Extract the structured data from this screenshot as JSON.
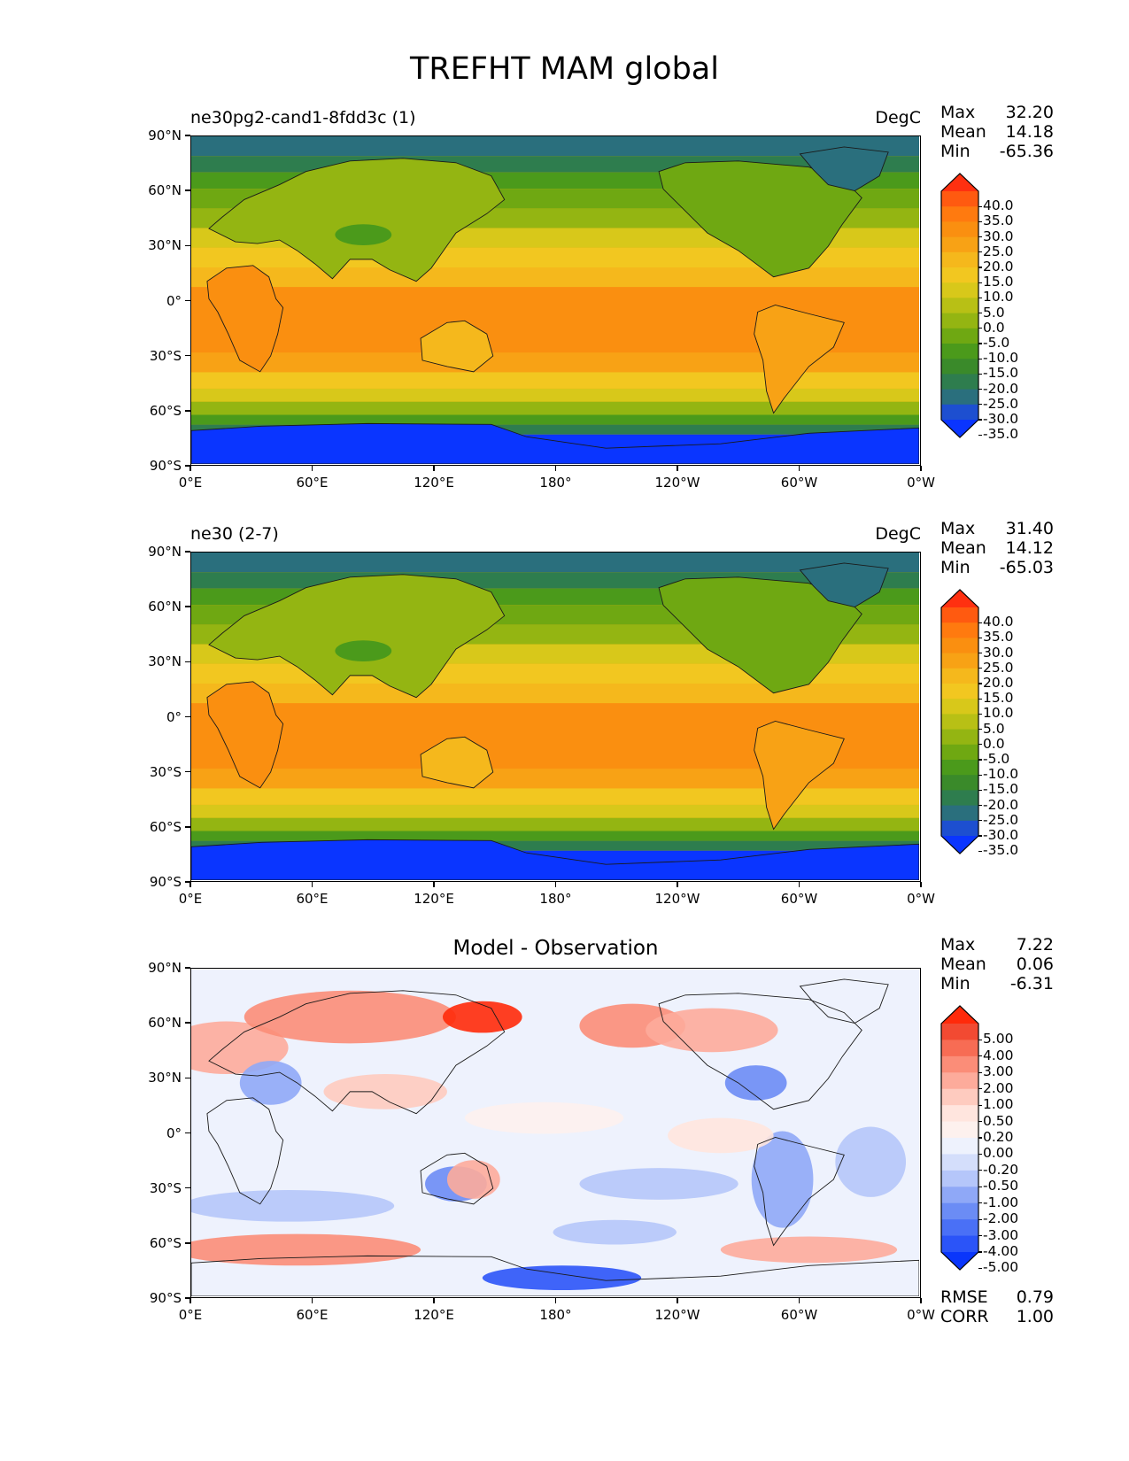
{
  "title": "TREFHT MAM global",
  "lon_ticks": [
    "0°E",
    "60°E",
    "120°E",
    "180°",
    "120°W",
    "60°W",
    "0°W"
  ],
  "lat_ticks": [
    "90°N",
    "60°N",
    "30°N",
    "0°",
    "30°S",
    "60°S",
    "90°S"
  ],
  "panels": [
    {
      "left_title": "ne30pg2-cand1-8fdd3c (1)",
      "center_title": "",
      "units": "DegC",
      "stats": [
        {
          "label": "Max",
          "value": "32.20"
        },
        {
          "label": "Mean",
          "value": "14.18"
        },
        {
          "label": "Min",
          "value": "-65.36"
        }
      ],
      "colorbar": {
        "labels": [
          "40.0",
          "35.0",
          "30.0",
          "25.0",
          "20.0",
          "15.0",
          "10.0",
          "5.0",
          "0.0",
          "-5.0",
          "-10.0",
          "-15.0",
          "-20.0",
          "-25.0",
          "-30.0",
          "-35.0"
        ],
        "colors": [
          "#ff3010",
          "#ff5a10",
          "#ff7a0f",
          "#fa8f10",
          "#f8a215",
          "#f5b81c",
          "#f2c720",
          "#d8c81a",
          "#b8c015",
          "#94b512",
          "#6fa812",
          "#4b9a1b",
          "#3a8a2a",
          "#2e7d4e",
          "#2a6f7d",
          "#1d4fd0",
          "#0a35ff"
        ]
      }
    },
    {
      "left_title": "ne30 (2-7)",
      "center_title": "",
      "units": "DegC",
      "stats": [
        {
          "label": "Max",
          "value": "31.40"
        },
        {
          "label": "Mean",
          "value": "14.12"
        },
        {
          "label": "Min",
          "value": "-65.03"
        }
      ],
      "colorbar": {
        "labels": [
          "40.0",
          "35.0",
          "30.0",
          "25.0",
          "20.0",
          "15.0",
          "10.0",
          "5.0",
          "0.0",
          "-5.0",
          "-10.0",
          "-15.0",
          "-20.0",
          "-25.0",
          "-30.0",
          "-35.0"
        ],
        "colors": [
          "#ff3010",
          "#ff5a10",
          "#ff7a0f",
          "#fa8f10",
          "#f8a215",
          "#f5b81c",
          "#f2c720",
          "#d8c81a",
          "#b8c015",
          "#94b512",
          "#6fa812",
          "#4b9a1b",
          "#3a8a2a",
          "#2e7d4e",
          "#2a6f7d",
          "#1d4fd0",
          "#0a35ff"
        ]
      }
    },
    {
      "left_title": "",
      "center_title": "Model - Observation",
      "units": "",
      "stats": [
        {
          "label": "Max",
          "value": "7.22"
        },
        {
          "label": "Mean",
          "value": "0.06"
        },
        {
          "label": "Min",
          "value": "-6.31"
        }
      ],
      "extra_stats": [
        {
          "label": "RMSE",
          "value": "0.79"
        },
        {
          "label": "CORR",
          "value": "1.00"
        }
      ],
      "colorbar": {
        "labels": [
          "5.00",
          "4.00",
          "3.00",
          "2.00",
          "1.00",
          "0.50",
          "0.20",
          "0.00",
          "-0.20",
          "-0.50",
          "-1.00",
          "-2.00",
          "-3.00",
          "-4.00",
          "-5.00"
        ],
        "colors": [
          "#ff2a0a",
          "#f24a32",
          "#f76c54",
          "#fb8d78",
          "#fdab9b",
          "#fecbbf",
          "#ffe5de",
          "#fdf1ee",
          "#eef2fd",
          "#d4defb",
          "#b5c6fa",
          "#8fa8f7",
          "#6b8cf5",
          "#4a70f6",
          "#2b54f8",
          "#0a36fb"
        ]
      }
    }
  ]
}
